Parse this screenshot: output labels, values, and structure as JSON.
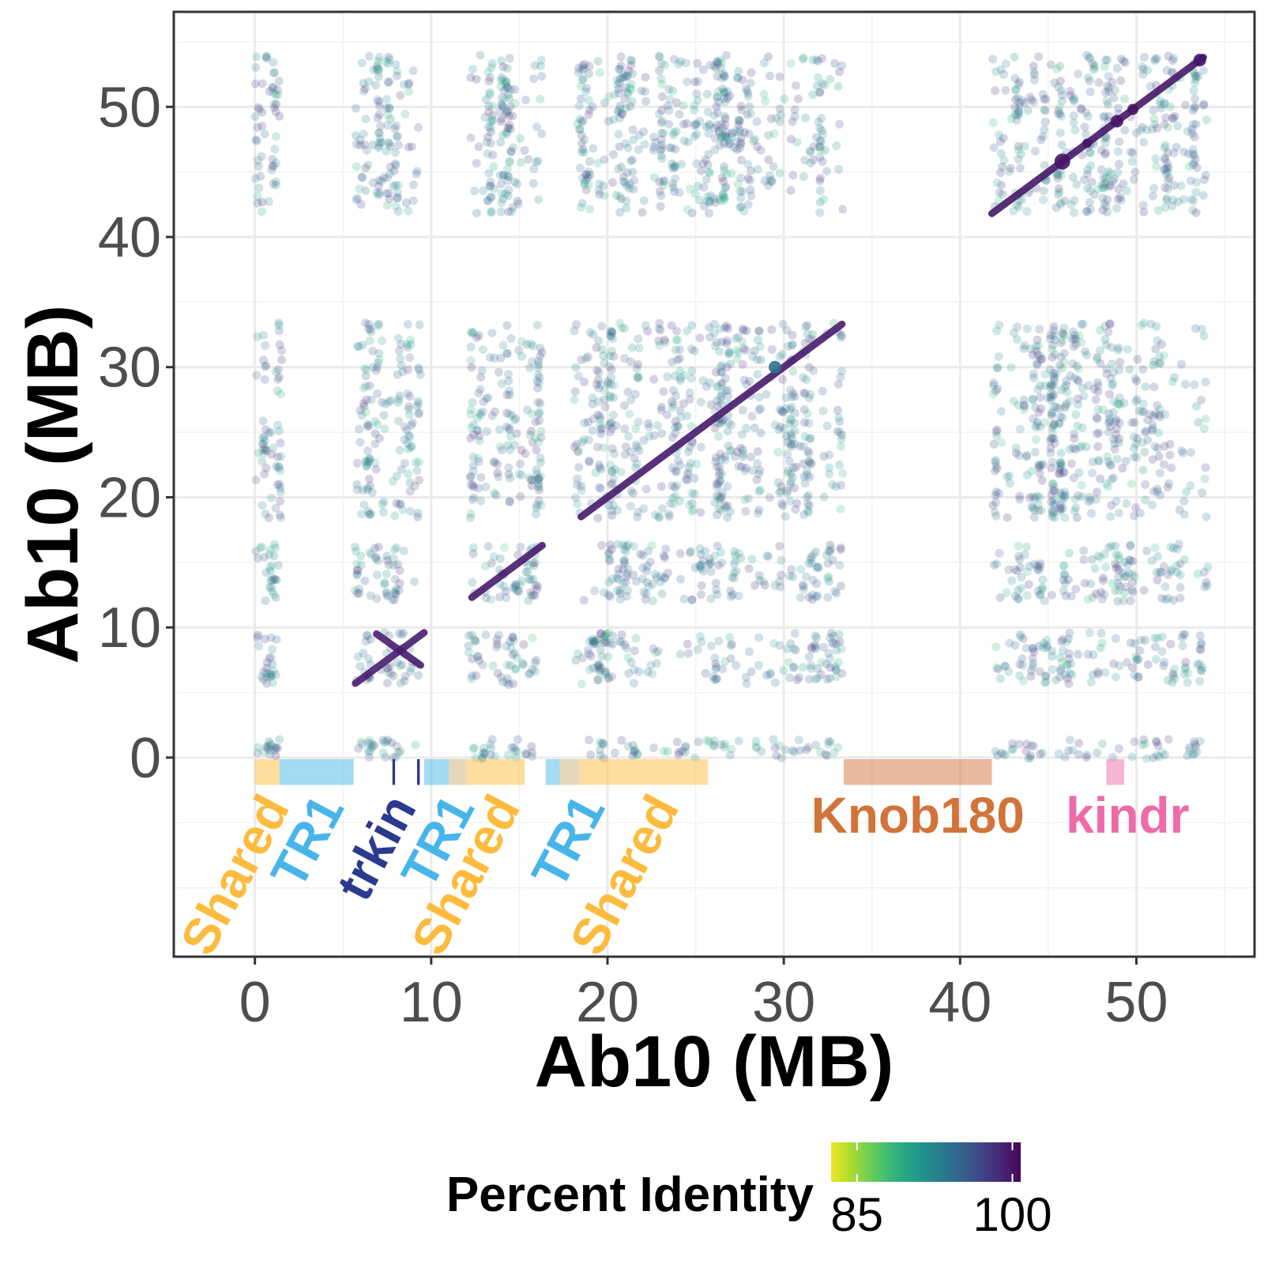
{
  "chart_data": {
    "type": "scatter",
    "xlabel": "Ab10 (MB)",
    "ylabel": "Ab10 (MB)",
    "xlim": [
      -4.6,
      56.7
    ],
    "ylim": [
      -15.3,
      57.3
    ],
    "x_ticks": [
      0,
      10,
      20,
      30,
      40,
      50
    ],
    "y_ticks": [
      0,
      10,
      20,
      30,
      40,
      50
    ],
    "grid": true,
    "color_scale": {
      "name": "viridis",
      "title": "Percent Identity",
      "min": 82,
      "max": 101,
      "ticks": [
        85,
        100
      ],
      "stops": [
        "#fde725",
        "#b5de2b",
        "#6ece58",
        "#35b779",
        "#1f9e89",
        "#26828e",
        "#31688e",
        "#3e4989",
        "#482878",
        "#440154"
      ]
    },
    "blocks": [
      [
        0,
        1.4
      ],
      [
        5.7,
        9.3
      ],
      [
        12.2,
        16.3
      ],
      [
        18.2,
        33.4
      ],
      [
        41.8,
        54
      ]
    ],
    "y_bands": [
      [
        -0.1,
        1.4
      ],
      [
        5.6,
        9.6
      ],
      [
        12,
        16.4
      ],
      [
        18.4,
        33.4
      ],
      [
        41.8,
        54
      ]
    ],
    "diagonals": [
      {
        "x": [
          5.7,
          9.6
        ],
        "y": [
          5.7,
          9.6
        ],
        "identity": 99.5
      },
      {
        "x": [
          6.9,
          9.4
        ],
        "y": [
          9.5,
          7.1
        ],
        "identity": 99.5
      },
      {
        "x": [
          12.3,
          16.3
        ],
        "y": [
          12.3,
          16.3
        ],
        "identity": 99.6
      },
      {
        "x": [
          18.5,
          33.3
        ],
        "y": [
          18.5,
          33.3
        ],
        "identity": 99.6
      },
      {
        "x": [
          41.8,
          53.8
        ],
        "y": [
          41.8,
          53.8
        ],
        "identity": 99.8
      }
    ],
    "tracks": [
      {
        "label": "Shared",
        "start": 0,
        "end": 1.4,
        "color": "#fdbb3d"
      },
      {
        "label": "TR1",
        "start": 1.4,
        "end": 5.6,
        "color": "#47b5ea"
      },
      {
        "label": "trkin",
        "start": 7.8,
        "end": 7.95,
        "color": "#2b3a8f"
      },
      {
        "label": "",
        "start": 9.2,
        "end": 9.35,
        "color": "#2b3a8f"
      },
      {
        "label": "TR1",
        "start": 9.6,
        "end": 11,
        "color": "#47b5ea"
      },
      {
        "label": "",
        "start": 11,
        "end": 12,
        "color": "#c7b27a"
      },
      {
        "label": "Shared",
        "start": 12,
        "end": 15.3,
        "color": "#fdbb3d"
      },
      {
        "label": "TR1",
        "start": 16.5,
        "end": 17.3,
        "color": "#47b5ea"
      },
      {
        "label": "",
        "start": 17.3,
        "end": 18.4,
        "color": "#c7b27a"
      },
      {
        "label": "Shared",
        "start": 18.4,
        "end": 25.7,
        "color": "#fdbb3d"
      },
      {
        "label": "Knob180",
        "start": 33.4,
        "end": 41.8,
        "color": "#d2743a"
      },
      {
        "label": "kindr",
        "start": 48.3,
        "end": 49.3,
        "color": "#ef6aa9"
      }
    ]
  }
}
